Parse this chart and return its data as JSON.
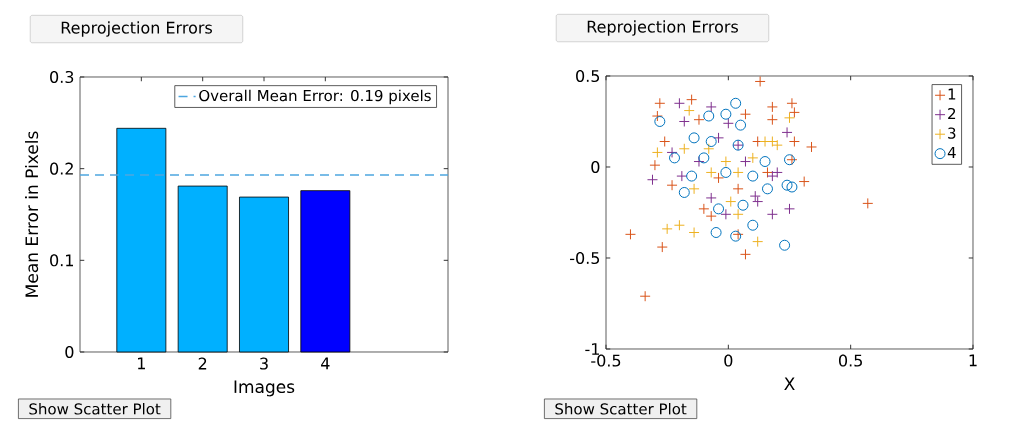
{
  "chart_data": [
    {
      "type": "bar",
      "title": "Reprojection Errors",
      "xlabel": "Images",
      "ylabel": "Mean Error in Pixels",
      "categories": [
        "1",
        "2",
        "3",
        "4"
      ],
      "values": [
        0.244,
        0.181,
        0.169,
        0.176
      ],
      "colors": [
        "#00b0ff",
        "#00b0ff",
        "#00b0ff",
        "#0000ff"
      ],
      "ylim": [
        0,
        0.3
      ],
      "yticks": [
        0,
        0.1,
        0.2,
        0.3
      ],
      "ref_lines": [
        {
          "axis": "y",
          "value": 0.193,
          "label": "Overall Mean Error: 0.19 pixels",
          "color": "#4da6e0",
          "line_style": "dashed"
        }
      ],
      "legend": "top right",
      "grid": false,
      "annotations": [
        "Show Scatter Plot"
      ]
    },
    {
      "type": "scatter",
      "title": "Reprojection Errors",
      "xlabel": "X",
      "xlim": [
        -0.5,
        1
      ],
      "ylim": [
        -1,
        0.5
      ],
      "xticks": [
        -0.5,
        0,
        0.5,
        1
      ],
      "yticks": [
        -1,
        -0.5,
        0,
        0.5
      ],
      "legend": "top right",
      "grid": false,
      "series": [
        {
          "name": "1",
          "color": "#d95319",
          "marker": "cross",
          "x": [
            0.13,
            -0.28,
            -0.15,
            -0.29,
            0.18,
            0.26,
            0.27,
            0.18,
            0.34,
            0.27,
            -0.26,
            -0.3,
            0.26,
            0.31,
            -0.4,
            -0.27,
            0.07,
            0.04,
            -0.07,
            -0.34,
            -0.12,
            0.07,
            -0.04,
            0.16,
            0.04,
            -0.23,
            0.12,
            -0.1,
            0.57
          ],
          "values": [
            0.47,
            0.35,
            0.37,
            0.28,
            0.33,
            0.35,
            0.3,
            0.26,
            0.11,
            0.14,
            0.14,
            0.01,
            0.04,
            -0.08,
            -0.37,
            -0.44,
            -0.48,
            -0.37,
            -0.27,
            -0.71,
            0.26,
            0.29,
            -0.06,
            -0.03,
            -0.12,
            -0.1,
            0.14,
            -0.23,
            -0.2
          ]
        },
        {
          "name": "2",
          "color": "#7e2f8e",
          "marker": "cross",
          "x": [
            -0.2,
            -0.07,
            -0.18,
            0.24,
            -0.31,
            0.18,
            0.18,
            0.25,
            -0.01,
            0.11,
            -0.12,
            0.04,
            -0.19,
            -0.07,
            0.2,
            0,
            0.07,
            -0.23,
            0.12,
            -0.04
          ],
          "values": [
            0.35,
            0.33,
            0.25,
            0.19,
            -0.07,
            -0.05,
            -0.26,
            -0.23,
            -0.26,
            -0.16,
            0.03,
            0.12,
            -0.05,
            -0.17,
            -0.03,
            0.24,
            0.03,
            0.08,
            -0.19,
            0.16
          ]
        },
        {
          "name": "3",
          "color": "#edb120",
          "marker": "cross",
          "x": [
            -0.16,
            -0.29,
            -0.2,
            -0.25,
            -0.14,
            0.12,
            0.25,
            0.18,
            0.2,
            -0.08,
            0.04,
            0.1,
            -0.14,
            0.01,
            0.04,
            -0.07,
            0.15,
            -0.18,
            -0.01
          ],
          "values": [
            0.31,
            0.08,
            -0.32,
            -0.34,
            -0.36,
            -0.41,
            0.27,
            0.14,
            0.12,
            0.1,
            -0.03,
            0.05,
            -0.12,
            -0.19,
            -0.26,
            -0.03,
            0.14,
            0.1,
            0.03
          ]
        },
        {
          "name": "4",
          "color": "#0072bd",
          "marker": "circle",
          "x": [
            0.03,
            -0.28,
            -0.08,
            -0.01,
            0.05,
            -0.14,
            -0.22,
            -0.18,
            -0.05,
            0.03,
            0.1,
            0.23,
            0.25,
            0.26,
            0.24,
            0.15,
            -0.04,
            0.06,
            0.1,
            -0.1,
            -0.01,
            0.04,
            -0.07,
            -0.15,
            0.16
          ],
          "values": [
            0.35,
            0.25,
            0.28,
            0.29,
            0.23,
            0.16,
            0.05,
            -0.14,
            -0.36,
            -0.38,
            -0.32,
            -0.43,
            0.04,
            -0.11,
            -0.1,
            0.03,
            -0.23,
            -0.21,
            -0.05,
            0.05,
            -0.03,
            0.12,
            0.14,
            -0.05,
            -0.12
          ]
        }
      ],
      "annotations": [
        "Show Scatter Plot"
      ]
    }
  ]
}
